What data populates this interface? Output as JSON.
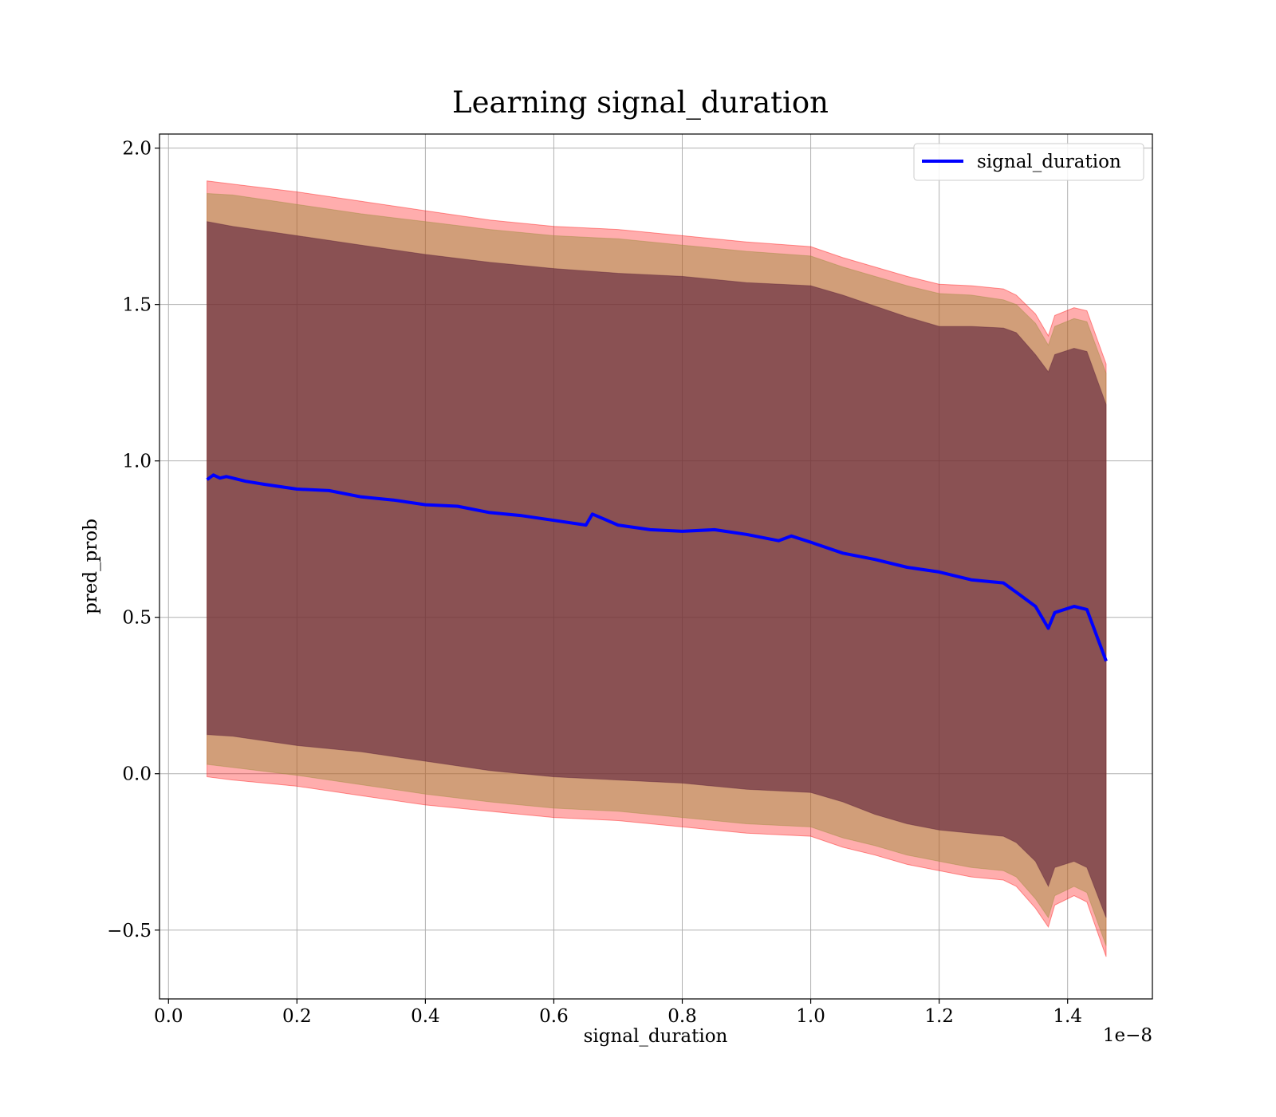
{
  "chart_data": {
    "type": "line",
    "title": "Learning signal_duration",
    "xlabel": "signal_duration",
    "ylabel": "pred_prob",
    "x_offset_label": "1e−8",
    "xlim": [
      -0.014,
      1.532
    ],
    "ylim": [
      -0.72,
      2.045
    ],
    "x_ticks": [
      0.0,
      0.2,
      0.4,
      0.6,
      0.8,
      1.0,
      1.2,
      1.4
    ],
    "x_tick_labels": [
      "0.0",
      "0.2",
      "0.4",
      "0.6",
      "0.8",
      "1.0",
      "1.2",
      "1.4"
    ],
    "y_ticks": [
      -0.5,
      0.0,
      0.5,
      1.0,
      1.5,
      2.0
    ],
    "y_tick_labels": [
      "−0.5",
      "0.0",
      "0.5",
      "1.0",
      "1.5",
      "2.0"
    ],
    "grid": true,
    "legend": {
      "placement": "top-right",
      "entries": [
        "signal_duration"
      ]
    },
    "colors": {
      "line": "#0000ff",
      "outer_band": "#ff0000",
      "middle_band": "#9a8c3a",
      "inner_band": "#5a1e3a",
      "grid": "#b0b0b0"
    },
    "series": [
      {
        "name": "signal_duration",
        "x": [
          0.06,
          0.07,
          0.08,
          0.09,
          0.1,
          0.12,
          0.15,
          0.2,
          0.25,
          0.3,
          0.35,
          0.4,
          0.45,
          0.5,
          0.55,
          0.6,
          0.65,
          0.66,
          0.7,
          0.75,
          0.8,
          0.85,
          0.9,
          0.95,
          0.97,
          1.0,
          1.05,
          1.1,
          1.15,
          1.2,
          1.25,
          1.3,
          1.32,
          1.35,
          1.37,
          1.38,
          1.41,
          1.43,
          1.46
        ],
        "y": [
          0.94,
          0.955,
          0.945,
          0.95,
          0.945,
          0.935,
          0.925,
          0.91,
          0.905,
          0.885,
          0.875,
          0.86,
          0.855,
          0.835,
          0.825,
          0.81,
          0.795,
          0.83,
          0.795,
          0.78,
          0.775,
          0.78,
          0.765,
          0.745,
          0.76,
          0.74,
          0.705,
          0.685,
          0.66,
          0.645,
          0.62,
          0.61,
          0.58,
          0.535,
          0.465,
          0.515,
          0.535,
          0.525,
          0.36
        ]
      }
    ],
    "bands": [
      {
        "level": "outer",
        "x": [
          0.06,
          0.1,
          0.2,
          0.3,
          0.4,
          0.5,
          0.6,
          0.7,
          0.8,
          0.9,
          1.0,
          1.05,
          1.1,
          1.15,
          1.2,
          1.25,
          1.3,
          1.32,
          1.35,
          1.37,
          1.38,
          1.41,
          1.43,
          1.46
        ],
        "upper": [
          1.895,
          1.885,
          1.86,
          1.83,
          1.8,
          1.77,
          1.75,
          1.74,
          1.72,
          1.7,
          1.685,
          1.65,
          1.62,
          1.59,
          1.565,
          1.56,
          1.55,
          1.53,
          1.47,
          1.4,
          1.465,
          1.49,
          1.48,
          1.31
        ],
        "lower": [
          -0.01,
          -0.02,
          -0.04,
          -0.07,
          -0.1,
          -0.12,
          -0.14,
          -0.15,
          -0.17,
          -0.19,
          -0.2,
          -0.235,
          -0.26,
          -0.29,
          -0.31,
          -0.33,
          -0.34,
          -0.36,
          -0.43,
          -0.49,
          -0.42,
          -0.39,
          -0.41,
          -0.585
        ]
      },
      {
        "level": "middle",
        "x": [
          0.06,
          0.1,
          0.2,
          0.3,
          0.4,
          0.5,
          0.6,
          0.7,
          0.8,
          0.9,
          1.0,
          1.05,
          1.1,
          1.15,
          1.2,
          1.25,
          1.3,
          1.32,
          1.35,
          1.37,
          1.38,
          1.41,
          1.43,
          1.46
        ],
        "upper": [
          1.855,
          1.85,
          1.82,
          1.79,
          1.765,
          1.74,
          1.72,
          1.71,
          1.69,
          1.67,
          1.655,
          1.62,
          1.59,
          1.56,
          1.535,
          1.53,
          1.515,
          1.5,
          1.44,
          1.37,
          1.43,
          1.455,
          1.445,
          1.28
        ],
        "lower": [
          0.03,
          0.02,
          -0.005,
          -0.035,
          -0.065,
          -0.09,
          -0.11,
          -0.12,
          -0.14,
          -0.16,
          -0.17,
          -0.205,
          -0.23,
          -0.26,
          -0.28,
          -0.3,
          -0.31,
          -0.33,
          -0.4,
          -0.46,
          -0.39,
          -0.36,
          -0.38,
          -0.55
        ]
      },
      {
        "level": "inner",
        "x": [
          0.06,
          0.1,
          0.2,
          0.3,
          0.4,
          0.5,
          0.6,
          0.7,
          0.8,
          0.9,
          1.0,
          1.05,
          1.1,
          1.15,
          1.2,
          1.25,
          1.3,
          1.32,
          1.35,
          1.37,
          1.38,
          1.41,
          1.43,
          1.46
        ],
        "upper": [
          1.765,
          1.75,
          1.72,
          1.69,
          1.66,
          1.635,
          1.615,
          1.6,
          1.59,
          1.57,
          1.56,
          1.53,
          1.495,
          1.46,
          1.43,
          1.43,
          1.425,
          1.41,
          1.34,
          1.285,
          1.34,
          1.36,
          1.35,
          1.18
        ],
        "lower": [
          0.125,
          0.12,
          0.09,
          0.07,
          0.04,
          0.01,
          -0.01,
          -0.02,
          -0.03,
          -0.05,
          -0.06,
          -0.09,
          -0.13,
          -0.16,
          -0.18,
          -0.19,
          -0.2,
          -0.22,
          -0.28,
          -0.36,
          -0.3,
          -0.28,
          -0.3,
          -0.46
        ]
      }
    ]
  }
}
